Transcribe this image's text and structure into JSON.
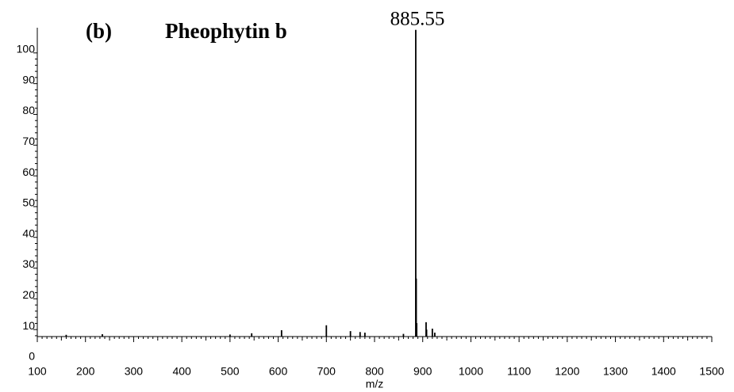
{
  "chart_data": {
    "type": "bar",
    "label": "(b)",
    "title": "Pheophytin b",
    "annotation": "885.55",
    "xlabel": "m/z",
    "x": [
      160,
      235,
      500,
      545,
      607,
      700,
      750,
      770,
      780,
      860,
      885.55,
      886.5,
      887.5,
      907,
      908,
      920,
      925
    ],
    "values": [
      8.3,
      8.5,
      8.4,
      8.8,
      9.8,
      11.4,
      9.5,
      9.2,
      9.0,
      8.6,
      107.5,
      26.6,
      12.1,
      12.4,
      10.0,
      10.3,
      9.0
    ],
    "color": "#000000",
    "xlim": [
      100,
      1500
    ],
    "xticks": [
      100,
      200,
      300,
      400,
      500,
      600,
      700,
      800,
      900,
      1000,
      1100,
      1200,
      1300,
      1400,
      1500
    ],
    "ylim": [
      0,
      110
    ],
    "yticks": [
      0,
      10,
      20,
      30,
      40,
      50,
      60,
      70,
      80,
      90,
      100
    ]
  }
}
